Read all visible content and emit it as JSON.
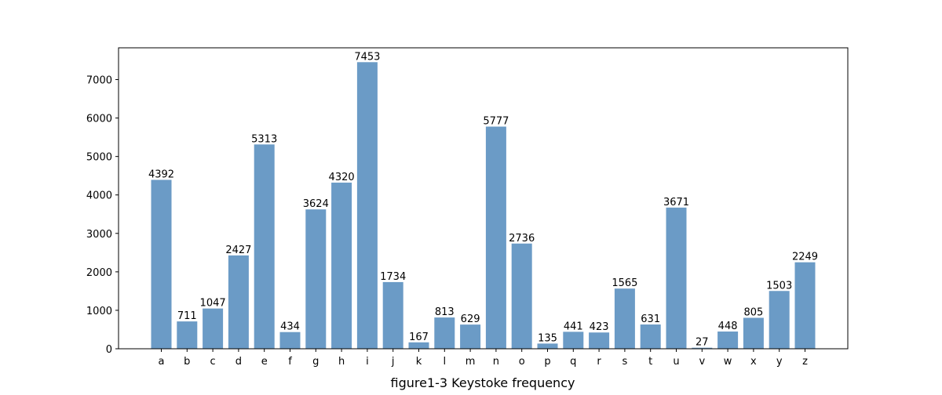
{
  "chart_data": {
    "type": "bar",
    "xlabel": "figure1-3 Keystoke frequency",
    "ylabel": "",
    "categories": [
      "a",
      "b",
      "c",
      "d",
      "e",
      "f",
      "g",
      "h",
      "i",
      "j",
      "k",
      "l",
      "m",
      "n",
      "o",
      "p",
      "q",
      "r",
      "s",
      "t",
      "u",
      "v",
      "w",
      "x",
      "y",
      "z"
    ],
    "values": [
      4392,
      711,
      1047,
      2427,
      5313,
      434,
      3624,
      4320,
      7453,
      1734,
      167,
      813,
      629,
      5777,
      2736,
      135,
      441,
      423,
      1565,
      631,
      3671,
      27,
      448,
      805,
      1503,
      2249
    ],
    "ylim": [
      0,
      7826
    ],
    "yticks": [
      0,
      1000,
      2000,
      3000,
      4000,
      5000,
      6000,
      7000
    ],
    "bar_color": "#6b9bc6",
    "grid": false,
    "legend": "none"
  }
}
